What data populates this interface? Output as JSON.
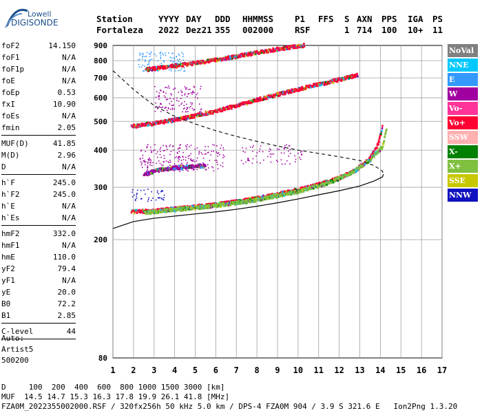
{
  "logo": {
    "line1": "Lowell",
    "line2": "DIGISONDE"
  },
  "header": {
    "row1": [
      "Station",
      "YYYY",
      "DAY",
      "DDD",
      "HHMMSS",
      "P1",
      "FFS",
      "S",
      "AXN",
      "PPS",
      "IGA",
      "PS"
    ],
    "row2": [
      "Fortaleza",
      "2022",
      "Dez21",
      "355",
      "002000",
      "RSF",
      "",
      "1",
      "714",
      "100",
      "10+",
      "11"
    ]
  },
  "params_groups": [
    [
      {
        "n": "foF2",
        "v": "14.150"
      },
      {
        "n": "foF1",
        "v": "N/A"
      },
      {
        "n": "foF1p",
        "v": "N/A"
      },
      {
        "n": "foE",
        "v": "N/A"
      },
      {
        "n": "foEp",
        "v": "0.53"
      },
      {
        "n": "fxI",
        "v": "10.90"
      },
      {
        "n": "foEs",
        "v": "N/A"
      },
      {
        "n": "fmin",
        "v": "2.05"
      }
    ],
    [
      {
        "n": "MUF(D)",
        "v": "41.85"
      },
      {
        "n": "M(D)",
        "v": "2.96"
      },
      {
        "n": "D",
        "v": "N/A"
      }
    ],
    [
      {
        "n": "h`F",
        "v": "245.0"
      },
      {
        "n": "h`F2",
        "v": "245.0"
      },
      {
        "n": "h`E",
        "v": "N/A"
      },
      {
        "n": "h`Es",
        "v": "N/A"
      }
    ],
    [
      {
        "n": "hmF2",
        "v": "332.0"
      },
      {
        "n": "hmF1",
        "v": "N/A"
      },
      {
        "n": "hmE",
        "v": "110.0"
      },
      {
        "n": "yF2",
        "v": "79.4"
      },
      {
        "n": "yF1",
        "v": "N/A"
      },
      {
        "n": "yE",
        "v": "20.0"
      },
      {
        "n": "B0",
        "v": "72.2"
      },
      {
        "n": "B1",
        "v": "2.85"
      }
    ],
    [
      {
        "n": "C-level",
        "v": "44"
      }
    ]
  ],
  "autoscaling": {
    "line1": "Auto:",
    "line2": "Artist5",
    "line3": "500200"
  },
  "legend": [
    {
      "label": "NoVal",
      "color": "#808080"
    },
    {
      "label": "NNE",
      "color": "#00c8ff"
    },
    {
      "label": "E",
      "color": "#3399ff"
    },
    {
      "label": "W",
      "color": "#a000a0"
    },
    {
      "label": "Vo-",
      "color": "#ff3399"
    },
    {
      "label": "Vo+",
      "color": "#ff0033"
    },
    {
      "label": "SSW",
      "color": "#ffb0b0"
    },
    {
      "label": "X-",
      "color": "#008000"
    },
    {
      "label": "X+",
      "color": "#80c040"
    },
    {
      "label": "SSE",
      "color": "#c8c800"
    },
    {
      "label": "NNW",
      "color": "#1010c0"
    }
  ],
  "footer": {
    "line1": "D     100  200  400  600  800 1000 1500 3000 [km]",
    "line2": "MUF  14.5 14.7 15.3 16.3 17.8 19.9 26.1 41.8 [MHz]",
    "line3": "FZA0M_2022355002000.RSF / 320fx256h 50 kHz 5.0 km / DPS-4 FZA0M 904 / 3.9 S 321.6 E   Ion2Png 1.3.20"
  },
  "chart_data": {
    "type": "scatter",
    "xlabel": "",
    "ylabel": "",
    "xlim": [
      1,
      17
    ],
    "ylim": [
      80,
      900
    ],
    "y_scale": "log",
    "x_ticks": [
      1,
      2,
      3,
      4,
      5,
      6,
      7,
      8,
      9,
      10,
      11,
      12,
      13,
      14,
      15,
      16,
      17
    ],
    "y_ticks": [
      80,
      200,
      300,
      400,
      500,
      600,
      700,
      800,
      900
    ],
    "grid": true,
    "echo_traces": [
      {
        "name": "O-trace F2",
        "color": "#ff0033",
        "points": [
          [
            1.9,
            248
          ],
          [
            3,
            250
          ],
          [
            4,
            254
          ],
          [
            5,
            258
          ],
          [
            6,
            262
          ],
          [
            7,
            268
          ],
          [
            8,
            275
          ],
          [
            9,
            284
          ],
          [
            10,
            294
          ],
          [
            11,
            306
          ],
          [
            12,
            322
          ],
          [
            12.8,
            342
          ],
          [
            13.5,
            375
          ],
          [
            13.9,
            420
          ],
          [
            14.1,
            480
          ]
        ]
      },
      {
        "name": "X-trace F2",
        "color": "#80c040",
        "points": [
          [
            2.5,
            246
          ],
          [
            4,
            252
          ],
          [
            6,
            260
          ],
          [
            8,
            272
          ],
          [
            10,
            290
          ],
          [
            11.5,
            310
          ],
          [
            12.6,
            335
          ],
          [
            13.5,
            370
          ],
          [
            14.1,
            410
          ],
          [
            14.3,
            470
          ]
        ]
      },
      {
        "name": "2nd hop",
        "color": "#ff0033",
        "points": [
          [
            1.9,
            480
          ],
          [
            3,
            492
          ],
          [
            4,
            505
          ],
          [
            5,
            522
          ],
          [
            6,
            540
          ],
          [
            7,
            565
          ],
          [
            8,
            590
          ],
          [
            9,
            615
          ],
          [
            10,
            640
          ],
          [
            11,
            665
          ],
          [
            12,
            690
          ],
          [
            12.9,
            715
          ]
        ]
      },
      {
        "name": "3rd hop",
        "color": "#ff0033",
        "points": [
          [
            2.6,
            745
          ],
          [
            3.5,
            760
          ],
          [
            4.5,
            775
          ],
          [
            5.5,
            795
          ],
          [
            6.5,
            815
          ],
          [
            7.5,
            838
          ],
          [
            8.5,
            862
          ],
          [
            9.5,
            885
          ],
          [
            10.3,
            900
          ]
        ]
      },
      {
        "name": "Es/W cluster",
        "color": "#a000a0",
        "points": [
          [
            2.5,
            330
          ],
          [
            3,
            340
          ],
          [
            3.5,
            345
          ],
          [
            4,
            348
          ],
          [
            4.5,
            350
          ],
          [
            5,
            352
          ],
          [
            5.5,
            355
          ]
        ]
      }
    ],
    "profile_curve": {
      "points": [
        [
          1,
          218
        ],
        [
          2,
          230
        ],
        [
          3,
          236
        ],
        [
          4,
          240
        ],
        [
          5,
          244
        ],
        [
          6,
          248
        ],
        [
          7,
          253
        ],
        [
          8,
          259
        ],
        [
          9,
          266
        ],
        [
          10,
          274
        ],
        [
          11,
          283
        ],
        [
          12,
          292
        ],
        [
          13,
          303
        ],
        [
          13.7,
          315
        ],
        [
          14.1,
          325
        ],
        [
          14.15,
          332
        ]
      ]
    },
    "model_curve": {
      "points": [
        [
          1,
          740
        ],
        [
          2,
          640
        ],
        [
          3,
          565
        ],
        [
          4,
          520
        ],
        [
          5,
          490
        ],
        [
          6,
          465
        ],
        [
          7,
          445
        ],
        [
          8,
          428
        ],
        [
          9,
          413
        ],
        [
          10,
          400
        ],
        [
          11,
          390
        ],
        [
          12,
          380
        ],
        [
          13,
          369
        ],
        [
          13.7,
          355
        ],
        [
          14.1,
          340
        ],
        [
          14.15,
          332
        ]
      ]
    }
  }
}
